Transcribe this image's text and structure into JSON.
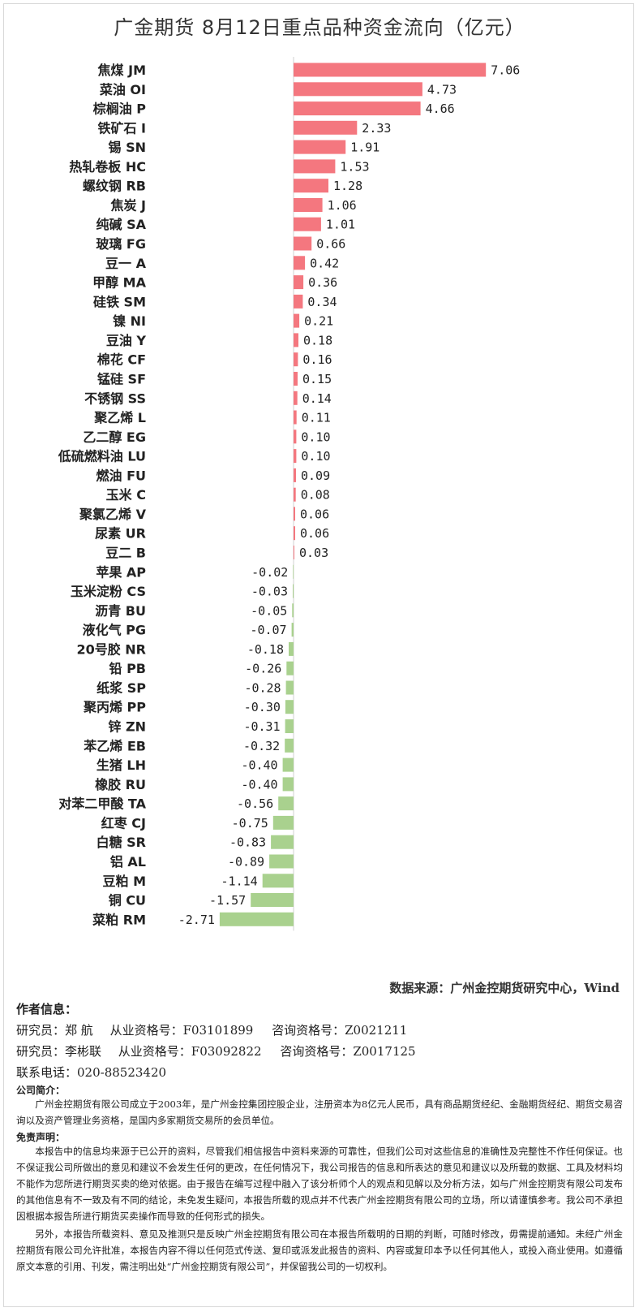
{
  "title": "广金期货 8月12日重点品种资金流向（亿元）",
  "chart_data": {
    "type": "bar",
    "orientation": "horizontal",
    "title": "广金期货 8月12日重点品种资金流向（亿元）",
    "positive_color": "#f4777f",
    "negative_color": "#a9d18e",
    "xlim": [
      -3.2,
      8.3
    ],
    "grid": false,
    "categories": [
      "焦煤 JM",
      "菜油 OI",
      "棕榈油 P",
      "铁矿石 I",
      "锡 SN",
      "热轧卷板 HC",
      "螺纹钢 RB",
      "焦炭 J",
      "纯碱 SA",
      "玻璃 FG",
      "豆一 A",
      "甲醇 MA",
      "硅铁 SM",
      "镍 NI",
      "豆油 Y",
      "棉花 CF",
      "锰硅 SF",
      "不锈钢 SS",
      "聚乙烯 L",
      "乙二醇 EG",
      "低硫燃料油 LU",
      "燃油 FU",
      "玉米 C",
      "聚氯乙烯 V",
      "尿素 UR",
      "豆二 B",
      "苹果 AP",
      "玉米淀粉 CS",
      "沥青 BU",
      "液化气 PG",
      "20号胶 NR",
      "铅 PB",
      "纸浆 SP",
      "聚丙烯 PP",
      "锌 ZN",
      "苯乙烯 EB",
      "生猪 LH",
      "橡胶 RU",
      "对苯二甲酸 TA",
      "红枣 CJ",
      "白糖 SR",
      "铝 AL",
      "豆粕 M",
      "铜 CU",
      "菜粕 RM"
    ],
    "values": [
      7.06,
      4.73,
      4.66,
      2.33,
      1.91,
      1.53,
      1.28,
      1.06,
      1.01,
      0.66,
      0.42,
      0.36,
      0.34,
      0.21,
      0.18,
      0.16,
      0.15,
      0.14,
      0.11,
      0.1,
      0.1,
      0.09,
      0.08,
      0.06,
      0.06,
      0.03,
      -0.02,
      -0.03,
      -0.05,
      -0.07,
      -0.18,
      -0.26,
      -0.28,
      -0.3,
      -0.31,
      -0.32,
      -0.4,
      -0.4,
      -0.56,
      -0.75,
      -0.83,
      -0.89,
      -1.14,
      -1.57,
      -2.71
    ],
    "value_labels": [
      "7.06",
      "4.73",
      "4.66",
      "2.33",
      "1.91",
      "1.53",
      "1.28",
      "1.06",
      "1.01",
      "0.66",
      "0.42",
      "0.36",
      "0.34",
      "0.21",
      "0.18",
      "0.16",
      "0.15",
      "0.14",
      "0.11",
      "0.10",
      "0.10",
      "0.09",
      "0.08",
      "0.06",
      "0.06",
      "0.03",
      "-0.02",
      "-0.03",
      "-0.05",
      "-0.07",
      "-0.18",
      "-0.26",
      "-0.28",
      "-0.30",
      "-0.31",
      "-0.32",
      "-0.40",
      "-0.40",
      "-0.56",
      "-0.75",
      "-0.83",
      "-0.89",
      "-1.14",
      "-1.57",
      "-2.71"
    ]
  },
  "source": "数据来源：广州金控期货研究中心，Wind",
  "author": {
    "heading": "作者信息：",
    "researchers": [
      {
        "name": "研究员：郑 航",
        "qual": "从业资格号：F03101899",
        "consult": "咨询资格号：Z0021211"
      },
      {
        "name": "研究员：李彬联",
        "qual": "从业资格号：F03092822",
        "consult": "咨询资格号：Z0017125"
      }
    ],
    "phone": "联系电话：020-88523420"
  },
  "intro": {
    "heading": "公司简介：",
    "text": "广州金控期货有限公司成立于2003年，是广州金控集团控股企业，注册资本为8亿元人民币，具有商品期货经纪、金融期货经纪、期货交易咨询以及资产管理业务资格，是国内多家期货交易所的会员单位。"
  },
  "disclaimer": {
    "heading": "免责声明：",
    "p1": "本报告中的信息均来源于已公开的资料，尽管我们相信报告中资料来源的可靠性，但我们公司对这些信息的准确性及完整性不作任何保证。也不保证我公司所做出的意见和建议不会发生任何的更改，在任何情况下，我公司报告的信息和所表达的意见和建议以及所载的数据、工具及材料均不能作为您所进行期货买卖的绝对依据。由于报告在编写过程中融入了该分析师个人的观点和见解以及分析方法，如与广州金控期货有限公司发布的其他信息有不一致及有不同的结论，未免发生疑问，本报告所载的观点并不代表广州金控期货有限公司的立场，所以请谨慎参考。我公司不承担因根据本报告所进行期货买卖操作而导致的任何形式的损失。",
    "p2": "另外，本报告所载资料、意见及推测只是反映广州金控期货有限公司在本报告所载明的日期的判断，可随时修改，毋需提前通知。未经广州金控期货有限公司允许批准，本报告内容不得以任何范式传送、复印或派发此报告的资料、内容或复印本予以任何其他人，或投入商业使用。如遵循原文本意的引用、刊发，需注明出处“广州金控期货有限公司”，并保留我公司的一切权利。"
  }
}
